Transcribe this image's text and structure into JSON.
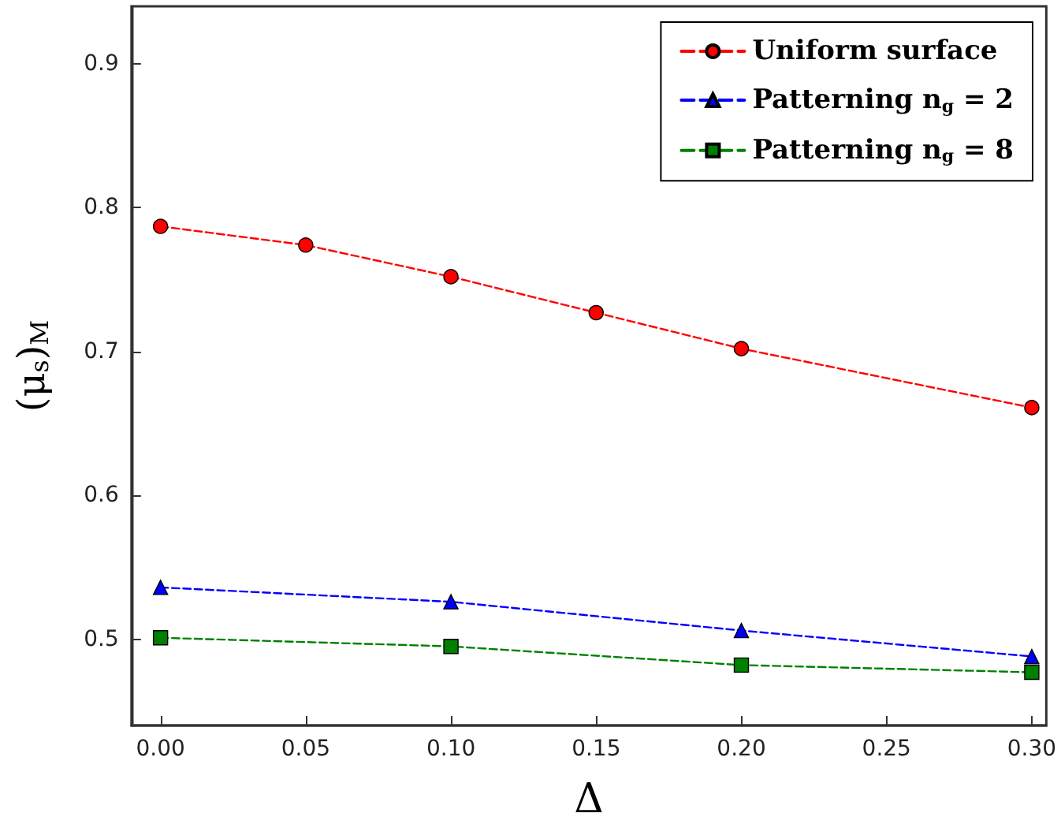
{
  "chart_data": {
    "type": "line",
    "xlabel": "Δ",
    "ylabel": "(μ$_{s}$)$_{M}$",
    "xlim": [
      -0.01,
      0.305
    ],
    "xticks": [
      {
        "value": 0,
        "label": "0.00"
      },
      0.05,
      {
        "value": 0.1,
        "label": "0.10"
      },
      0.15,
      {
        "value": 0.2,
        "label": "0.20"
      },
      0.25,
      {
        "value": 0.3,
        "label": "0.30"
      }
    ],
    "ylim": [
      0.44,
      0.94
    ],
    "yticks": [
      0.5,
      0.6,
      0.7,
      0.8,
      0.9
    ],
    "grid": false,
    "legend": "top right",
    "line_style": "dashed",
    "series": [
      {
        "name": "Uniform surface",
        "color": "#ff0000",
        "marker": "circle",
        "x": [
          0,
          0.05,
          0.1,
          0.15,
          0.2,
          0.3
        ],
        "values": [
          0.787,
          0.774,
          0.752,
          0.727,
          0.702,
          0.661
        ]
      },
      {
        "name": "Patterning n$_{g}$ = 2",
        "color": "#0000ff",
        "marker": "triangle",
        "x": [
          0,
          0.1,
          0.2,
          0.3
        ],
        "values": [
          0.536,
          0.526,
          0.506,
          0.488
        ]
      },
      {
        "name": "Patterning n$_{g}$ = 8",
        "color": "#008000",
        "marker": "square",
        "x": [
          0,
          0.1,
          0.2,
          0.3
        ],
        "values": [
          0.501,
          0.495,
          0.482,
          0.477
        ]
      }
    ]
  }
}
